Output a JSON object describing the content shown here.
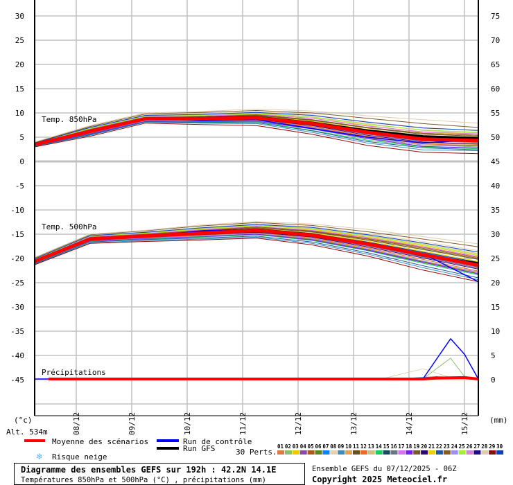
{
  "chart_data": {
    "type": "line",
    "title": "Diagramme des ensembles GEFS sur 192h : 42.2N 14.1E",
    "subtitle": "Températures 850hPa et 500hPa (°C) , précipitations (mm)",
    "run_info": "Ensemble GEFS du 07/12/2025 - 06Z",
    "copyright": "Copyright 2025 Meteociel.fr",
    "altitude": "Alt. 534m",
    "ylabel_left": "(°c)",
    "ylabel_right": "(mm)",
    "left_ticks": [
      "30",
      "25",
      "20",
      "15",
      "10",
      "5",
      "0",
      "-5",
      "-10",
      "-15",
      "-20",
      "-25",
      "-30",
      "-35",
      "-40",
      "-45"
    ],
    "left_tick_values": [
      30,
      25,
      20,
      15,
      10,
      5,
      0,
      -5,
      -10,
      -15,
      -20,
      -25,
      -30,
      -35,
      -40,
      -45
    ],
    "right_ticks": [
      "75",
      "70",
      "65",
      "60",
      "55",
      "50",
      "45",
      "40",
      "35",
      "30",
      "25",
      "20",
      "15",
      "10",
      "5",
      "0"
    ],
    "ylim": [
      -52,
      33
    ],
    "x_hours_range": [
      0,
      192
    ],
    "x_ticks": [
      {
        "label": "08/12",
        "hour": 18
      },
      {
        "label": "09/12",
        "hour": 42
      },
      {
        "label": "10/12",
        "hour": 66
      },
      {
        "label": "11/12",
        "hour": 90
      },
      {
        "label": "12/12",
        "hour": 114
      },
      {
        "label": "13/12",
        "hour": 138
      },
      {
        "label": "14/12",
        "hour": 162
      },
      {
        "label": "15/12",
        "hour": 186
      }
    ],
    "panel_labels": {
      "t850": "Temp. 850hPa",
      "t500": "Temp. 500hPa",
      "precip": "Précipitations"
    },
    "hours": [
      0,
      24,
      48,
      72,
      96,
      120,
      144,
      168,
      192
    ],
    "mean": {
      "name": "Moyenne des scénarios",
      "color": "#ff0000",
      "t850": [
        3.5,
        6.2,
        8.8,
        8.8,
        9.0,
        7.8,
        6.0,
        4.6,
        4.3
      ],
      "t500": [
        -20.6,
        -16.0,
        -15.4,
        -14.8,
        -14.2,
        -15.2,
        -17.0,
        -19.2,
        -21.4
      ],
      "precip": [
        [
          6,
          0
        ],
        [
          168,
          0
        ],
        [
          174,
          0.2
        ],
        [
          186,
          0.3
        ],
        [
          192,
          0
        ]
      ]
    },
    "control": {
      "name": "Run de contrôle",
      "color": "#0000ff",
      "t850": [
        3.6,
        6.0,
        8.9,
        8.4,
        8.6,
        6.8,
        5.0,
        3.8,
        4.5
      ],
      "t500": [
        -20.8,
        -16.1,
        -15.5,
        -14.3,
        -14.0,
        -15.0,
        -17.2,
        -19.0,
        -24.8
      ],
      "precip": [
        [
          0,
          0
        ],
        [
          168,
          0
        ],
        [
          180,
          8.3
        ],
        [
          186,
          5.1
        ],
        [
          192,
          0
        ]
      ]
    },
    "gfs": {
      "name": "Run GFS",
      "color": "#000000",
      "t850": [
        3.5,
        6.3,
        8.8,
        9.0,
        9.2,
        8.0,
        6.4,
        5.2,
        4.8
      ],
      "t500": [
        -20.6,
        -15.9,
        -15.3,
        -14.6,
        -14.0,
        -15.0,
        -16.9,
        -19.4,
        -21.0
      ]
    },
    "snow_risk_label": "Risque neige",
    "perts_label": "30 Perts.",
    "members": [
      {
        "id": "01",
        "color": "#e07b39",
        "t850": [
          3.4,
          6.0,
          8.5,
          8.6,
          8.7,
          7.2,
          5.2,
          3.8,
          3.5
        ],
        "t500": [
          -20.9,
          -16.3,
          -15.8,
          -15.3,
          -14.9,
          -16.0,
          -18.1,
          -20.6,
          -22.9
        ]
      },
      {
        "id": "02",
        "color": "#8cc06a",
        "t850": [
          3.6,
          6.4,
          9.0,
          9.1,
          9.4,
          8.4,
          6.5,
          5.2,
          4.9
        ],
        "t500": [
          -20.4,
          -15.7,
          -15.1,
          -14.4,
          -13.6,
          -14.6,
          -16.2,
          -18.2,
          -20.2
        ],
        "precip": [
          [
            0,
            0
          ],
          [
            168,
            0
          ],
          [
            180,
            4.3
          ],
          [
            186,
            0.5
          ],
          [
            192,
            0
          ]
        ]
      },
      {
        "id": "03",
        "color": "#f0c800",
        "t850": [
          3.7,
          6.8,
          9.3,
          9.4,
          9.8,
          8.9,
          7.4,
          6.0,
          5.6
        ],
        "t500": [
          -20.2,
          -15.5,
          -14.8,
          -14.0,
          -13.2,
          -14.0,
          -15.6,
          -17.4,
          -19.4
        ]
      },
      {
        "id": "04",
        "color": "#8a4aa8",
        "t850": [
          3.4,
          6.1,
          8.7,
          8.6,
          8.8,
          7.5,
          5.6,
          4.2,
          4.0
        ],
        "t500": [
          -20.7,
          -16.1,
          -15.6,
          -15.0,
          -14.5,
          -15.5,
          -17.4,
          -19.7,
          -22.0
        ]
      },
      {
        "id": "05",
        "color": "#b05a18",
        "t850": [
          3.6,
          6.5,
          9.2,
          9.2,
          9.6,
          8.6,
          7.0,
          5.8,
          5.4
        ],
        "t500": [
          -20.3,
          -15.6,
          -14.9,
          -14.2,
          -13.4,
          -14.3,
          -15.9,
          -17.7,
          -19.8
        ]
      },
      {
        "id": "06",
        "color": "#5a8a14",
        "t850": [
          3.3,
          5.8,
          8.4,
          8.2,
          8.3,
          6.8,
          4.8,
          3.4,
          3.2
        ],
        "t500": [
          -21.0,
          -16.4,
          -15.9,
          -15.4,
          -15.0,
          -16.1,
          -18.2,
          -20.7,
          -23.1
        ]
      },
      {
        "id": "07",
        "color": "#0a84ff",
        "t850": [
          3.5,
          6.3,
          8.9,
          8.9,
          9.1,
          8.0,
          6.3,
          4.9,
          4.6
        ],
        "t500": [
          -20.5,
          -15.9,
          -15.3,
          -14.6,
          -14.0,
          -15.0,
          -16.7,
          -18.8,
          -21.0
        ]
      },
      {
        "id": "08",
        "color": "#e6d2ae",
        "t850": [
          3.8,
          7.0,
          9.6,
          9.8,
          10.2,
          9.6,
          8.2,
          7.0,
          6.3
        ],
        "t500": [
          -20.0,
          -15.3,
          -14.5,
          -13.6,
          -12.8,
          -13.5,
          -14.9,
          -16.5,
          -18.4
        ],
        "precip": [
          [
            0,
            0
          ],
          [
            150,
            0
          ],
          [
            168,
            2.1
          ],
          [
            180,
            0.3
          ],
          [
            192,
            0
          ]
        ]
      },
      {
        "id": "09",
        "color": "#3a8cc0",
        "t850": [
          3.1,
          5.4,
          8.1,
          7.9,
          7.8,
          6.0,
          3.8,
          2.4,
          2.2
        ],
        "t500": [
          -21.2,
          -16.8,
          -16.3,
          -16.0,
          -15.6,
          -16.9,
          -19.1,
          -21.9,
          -24.4
        ],
        "precip": [
          [
            0,
            0
          ],
          [
            156,
            0
          ],
          [
            174,
            0.5
          ],
          [
            192,
            0
          ]
        ]
      },
      {
        "id": "10",
        "color": "#e6a050",
        "t850": [
          3.5,
          6.2,
          8.8,
          8.8,
          9.0,
          7.8,
          6.0,
          4.6,
          4.3
        ],
        "t500": [
          -20.6,
          -16.0,
          -15.4,
          -14.8,
          -14.2,
          -15.2,
          -17.0,
          -19.2,
          -21.4
        ]
      },
      {
        "id": "11",
        "color": "#6a5020",
        "t850": [
          3.6,
          6.6,
          9.0,
          9.2,
          9.5,
          8.5,
          6.9,
          5.6,
          5.2
        ],
        "t500": [
          -20.4,
          -15.8,
          -15.0,
          -14.3,
          -13.7,
          -14.5,
          -16.2,
          -18.1,
          -20.2
        ]
      },
      {
        "id": "12",
        "color": "#f06a20",
        "t850": [
          3.3,
          5.9,
          8.5,
          8.4,
          8.5,
          7.1,
          5.1,
          3.6,
          3.3
        ],
        "t500": [
          -20.8,
          -16.3,
          -15.7,
          -15.2,
          -14.7,
          -15.8,
          -17.8,
          -20.2,
          -22.6
        ]
      },
      {
        "id": "13",
        "color": "#d2c080",
        "t850": [
          3.7,
          6.9,
          9.4,
          9.6,
          10.0,
          9.2,
          7.8,
          6.4,
          5.9
        ],
        "t500": [
          -20.1,
          -15.4,
          -14.7,
          -13.8,
          -13.1,
          -13.8,
          -15.3,
          -17.0,
          -19.0
        ]
      },
      {
        "id": "14",
        "color": "#18d060",
        "t850": [
          3.2,
          5.6,
          8.2,
          8.1,
          8.2,
          6.4,
          4.4,
          3.0,
          2.6
        ],
        "t500": [
          -21.0,
          -16.5,
          -16.0,
          -15.6,
          -15.1,
          -16.3,
          -18.4,
          -21.0,
          -23.4
        ]
      },
      {
        "id": "15",
        "color": "#204868",
        "t850": [
          3.5,
          6.4,
          8.9,
          9.0,
          9.3,
          8.2,
          6.5,
          5.0,
          4.8
        ],
        "t500": [
          -20.5,
          -15.8,
          -15.2,
          -14.6,
          -13.9,
          -14.9,
          -16.6,
          -18.7,
          -20.8
        ]
      },
      {
        "id": "16",
        "color": "#6a7880",
        "t850": [
          3.4,
          6.1,
          8.7,
          8.7,
          8.8,
          7.5,
          5.7,
          4.3,
          3.9
        ],
        "t500": [
          -20.7,
          -16.1,
          -15.5,
          -15.0,
          -14.4,
          -15.4,
          -17.3,
          -19.6,
          -21.8
        ]
      },
      {
        "id": "17",
        "color": "#e070f0",
        "t850": [
          3.7,
          6.7,
          9.2,
          9.4,
          9.7,
          8.9,
          7.3,
          6.1,
          5.7
        ],
        "t500": [
          -20.2,
          -15.5,
          -14.9,
          -14.1,
          -13.4,
          -14.2,
          -15.7,
          -17.6,
          -19.6
        ]
      },
      {
        "id": "18",
        "color": "#7a20f0",
        "t850": [
          3.3,
          5.7,
          8.3,
          8.2,
          8.3,
          6.7,
          4.7,
          3.1,
          2.8
        ],
        "t500": [
          -20.9,
          -16.4,
          -15.9,
          -15.5,
          -15.0,
          -16.2,
          -18.3,
          -20.8,
          -23.2
        ]
      },
      {
        "id": "19",
        "color": "#7a5a28",
        "t850": [
          3.9,
          7.2,
          9.8,
          10.1,
          10.5,
          10.0,
          8.9,
          7.8,
          7.0
        ],
        "t500": [
          -19.9,
          -15.1,
          -14.3,
          -13.3,
          -12.6,
          -13.2,
          -14.5,
          -16.0,
          -17.6
        ]
      },
      {
        "id": "20",
        "color": "#300a70",
        "t850": [
          3.4,
          6.0,
          8.6,
          8.5,
          8.7,
          7.4,
          5.4,
          4.0,
          3.6
        ],
        "t500": [
          -20.8,
          -16.2,
          -15.6,
          -15.1,
          -14.6,
          -15.6,
          -17.6,
          -19.9,
          -22.2
        ]
      },
      {
        "id": "21",
        "color": "#f0d000",
        "t850": [
          3.6,
          6.5,
          9.0,
          9.1,
          9.3,
          8.3,
          6.6,
          5.3,
          5.0
        ],
        "t500": [
          -20.4,
          -15.8,
          -15.2,
          -14.5,
          -13.8,
          -14.8,
          -16.4,
          -18.5,
          -20.6
        ]
      },
      {
        "id": "22",
        "color": "#205aa0",
        "t850": [
          3.2,
          5.5,
          8.2,
          8.0,
          8.0,
          6.3,
          4.1,
          2.8,
          2.4
        ],
        "t500": [
          -21.1,
          -16.6,
          -16.1,
          -15.8,
          -15.4,
          -16.6,
          -18.8,
          -21.5,
          -24.0
        ]
      },
      {
        "id": "23",
        "color": "#8a5a20",
        "t850": [
          3.6,
          6.6,
          9.1,
          9.2,
          9.6,
          8.6,
          7.0,
          5.8,
          5.4
        ],
        "t500": [
          -20.3,
          -15.7,
          -15.0,
          -14.3,
          -13.5,
          -14.4,
          -16.0,
          -17.9,
          -20.0
        ]
      },
      {
        "id": "24",
        "color": "#a090f0",
        "t850": [
          3.3,
          5.9,
          8.4,
          8.3,
          8.4,
          7.0,
          4.9,
          3.4,
          3.0
        ],
        "t500": [
          -20.9,
          -16.3,
          -15.8,
          -15.4,
          -14.8,
          -15.9,
          -18.0,
          -20.5,
          -22.8
        ]
      },
      {
        "id": "25",
        "color": "#a0f030",
        "t850": [
          3.7,
          6.8,
          9.3,
          9.5,
          9.9,
          9.1,
          7.6,
          6.5,
          6.0
        ],
        "t500": [
          -20.2,
          -15.4,
          -14.8,
          -13.9,
          -13.2,
          -13.9,
          -15.4,
          -17.2,
          -19.2
        ]
      },
      {
        "id": "26",
        "color": "#d880e0",
        "t850": [
          3.5,
          6.2,
          8.8,
          8.7,
          8.9,
          7.7,
          5.8,
          4.4,
          4.1
        ],
        "t500": [
          -20.6,
          -16.1,
          -15.5,
          -14.9,
          -14.3,
          -15.3,
          -17.2,
          -19.4,
          -21.6
        ]
      },
      {
        "id": "27",
        "color": "#200a90",
        "t850": [
          3.5,
          6.3,
          8.9,
          8.9,
          9.1,
          7.9,
          6.2,
          4.8,
          4.5
        ],
        "t500": [
          -20.6,
          -15.9,
          -15.3,
          -14.7,
          -14.1,
          -15.1,
          -16.9,
          -19.0,
          -21.2
        ]
      },
      {
        "id": "28",
        "color": "#e0ccaa",
        "t850": [
          4.0,
          7.4,
          10.0,
          10.3,
          10.8,
          10.4,
          9.4,
          8.6,
          7.9
        ],
        "t500": [
          -19.8,
          -15.0,
          -14.2,
          -13.1,
          -12.4,
          -12.9,
          -14.0,
          -15.5,
          -17.0
        ]
      },
      {
        "id": "29",
        "color": "#900a0a",
        "t850": [
          3.0,
          5.2,
          7.9,
          7.6,
          7.4,
          5.6,
          3.3,
          1.9,
          1.6
        ],
        "t500": [
          -21.3,
          -16.9,
          -16.5,
          -16.2,
          -15.8,
          -17.2,
          -19.5,
          -22.4,
          -24.8
        ]
      },
      {
        "id": "30",
        "color": "#0a40c0",
        "t850": [
          3.8,
          7.0,
          9.5,
          9.7,
          10.1,
          9.5,
          8.1,
          6.9,
          6.4
        ],
        "t500": [
          -20.1,
          -15.3,
          -14.6,
          -13.7,
          -13.0,
          -13.6,
          -15.1,
          -16.8,
          -18.7
        ]
      }
    ]
  }
}
